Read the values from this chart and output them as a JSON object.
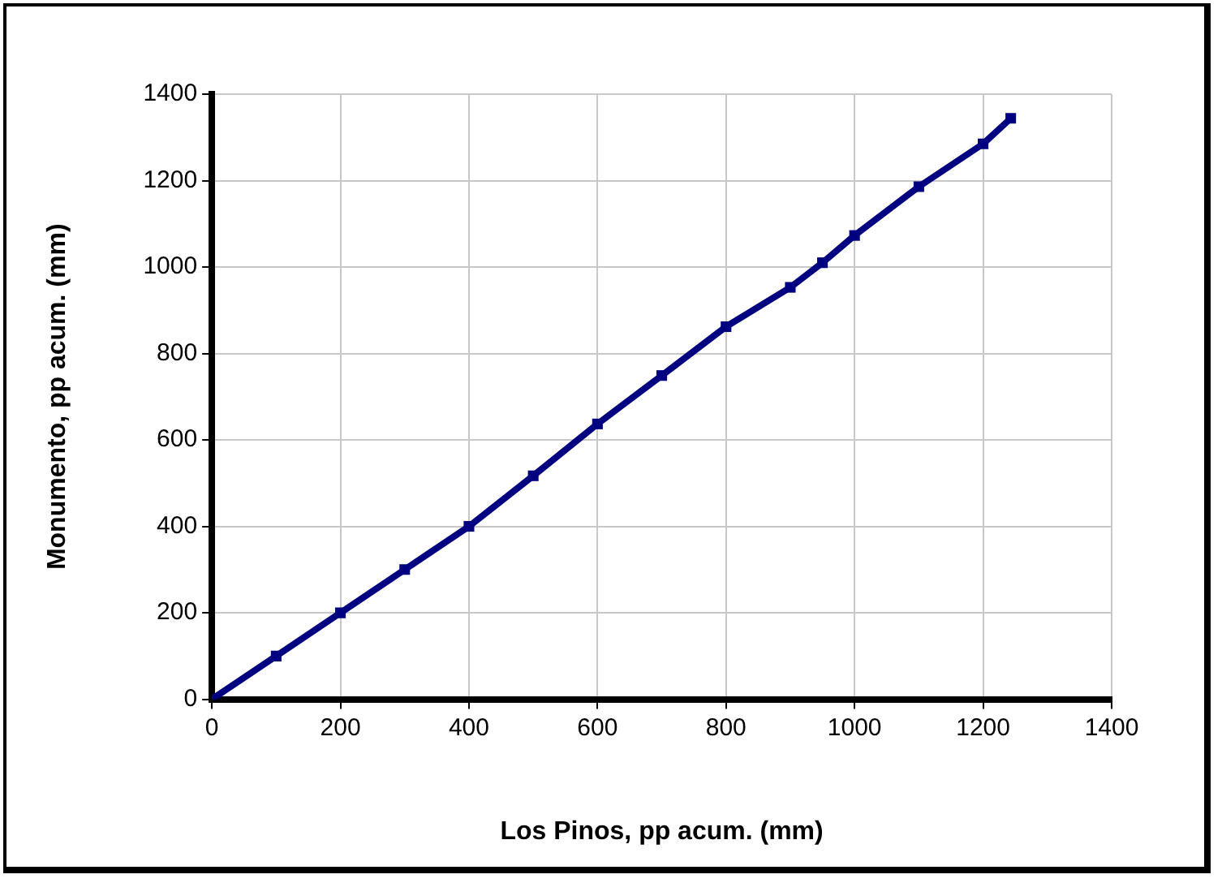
{
  "chart_data": {
    "type": "line",
    "xlabel": "Los Pinos, pp acum. (mm)",
    "ylabel": "Monumento, pp acum. (mm)",
    "series": [
      {
        "color": "#000080",
        "x": [
          0,
          100,
          200,
          300,
          400,
          500,
          600,
          700,
          800,
          900,
          950,
          1000,
          1100,
          1200,
          1243
        ],
        "values": [
          0,
          100,
          200,
          300,
          400,
          517,
          637,
          749,
          862,
          953,
          1010,
          1073,
          1186,
          1285,
          1344
        ]
      }
    ],
    "xlim": [
      0,
      1400
    ],
    "xticks": [
      0,
      200,
      400,
      600,
      800,
      1000,
      1200,
      1400
    ],
    "ylim": [
      0,
      1400
    ],
    "yticks": [
      0,
      200,
      400,
      600,
      800,
      1000,
      1200,
      1400
    ],
    "grid": true,
    "legend": false,
    "marker": "square",
    "line_style": "solid"
  }
}
